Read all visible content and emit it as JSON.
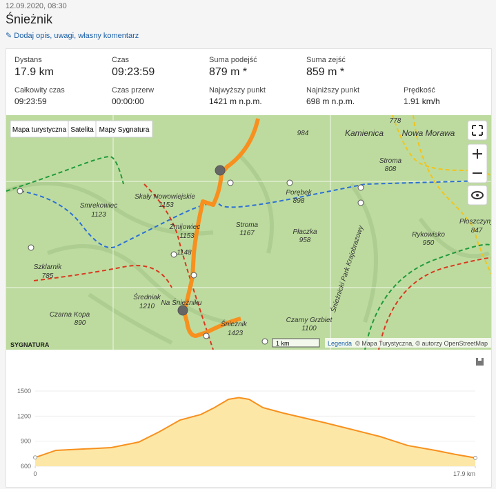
{
  "header": {
    "date": "12.09.2020, 08:30",
    "title": "Śnieżnik",
    "edit_link": "Dodaj opis, uwagi, własny komentarz"
  },
  "stats": [
    {
      "label": "Dystans",
      "value": "17.9 km"
    },
    {
      "label": "Czas",
      "value": "09:23:59"
    },
    {
      "label": "Suma podejść",
      "value": "879 m *"
    },
    {
      "label": "Suma zejść",
      "value": "859 m *"
    },
    {
      "label": "Całkowity czas",
      "value": "09:23:59"
    },
    {
      "label": "Czas przerw",
      "value": "00:00:00"
    },
    {
      "label": "Najwyższy punkt",
      "value": "1421 m n.p.m."
    },
    {
      "label": "Najniższy punkt",
      "value": "698 m n.p.m."
    },
    {
      "label": "Prędkość",
      "value": "1.91 km/h"
    }
  ],
  "map": {
    "tabs": [
      "Mapa turystyczna",
      "Satelita",
      "Mapy Sygnatura"
    ],
    "labels": [
      "Smrekowiec",
      "1123",
      "Skały Nowowiejskie",
      "1153",
      "Żmijowiec",
      "1153",
      "1148",
      "Szklarnik",
      "785",
      "Średniak",
      "1210",
      "Czarna Kopa",
      "890",
      "Na Śnieżniku",
      "Śnieżnik",
      "1423",
      "Stroma",
      "1167",
      "Porębek",
      "898",
      "Płaczka",
      "958",
      "Czarny Grzbiet",
      "1100",
      "Kamienica",
      "Nowa Morawa",
      "Stroma",
      "808",
      "Rykowisko",
      "950",
      "Płoszczyny",
      "847",
      "984",
      "778",
      "Śnieżnicki Park Krajobrazowy"
    ],
    "logo": "SYGNATURA",
    "scale": "1 km",
    "legend_link": "Legenda",
    "attribution": "© Mapa Turystyczna, © autorzy OpenStreetMap"
  },
  "chart_data": {
    "type": "area",
    "color": "#f7901e",
    "fill": "#fde7a6",
    "x": [
      0,
      0.84,
      1.96,
      3.09,
      4.21,
      5.05,
      5.89,
      6.73,
      7.29,
      7.86,
      8.28,
      8.7,
      9.26,
      10.1,
      10.94,
      11.79,
      12.91,
      14.03,
      15.15,
      16.27,
      17.12,
      17.9
    ],
    "values": [
      705,
      790,
      806,
      823,
      889,
      1013,
      1153,
      1219,
      1302,
      1401,
      1421,
      1401,
      1302,
      1236,
      1178,
      1120,
      1038,
      955,
      848,
      790,
      740,
      700
    ],
    "xlim": [
      0,
      17.9
    ],
    "xticks": [
      0,
      {
        "value": 17.9,
        "label": "17.9 km"
      }
    ],
    "ylim": [
      600,
      1500
    ],
    "yticks": [
      600,
      900,
      1200,
      1500
    ]
  }
}
